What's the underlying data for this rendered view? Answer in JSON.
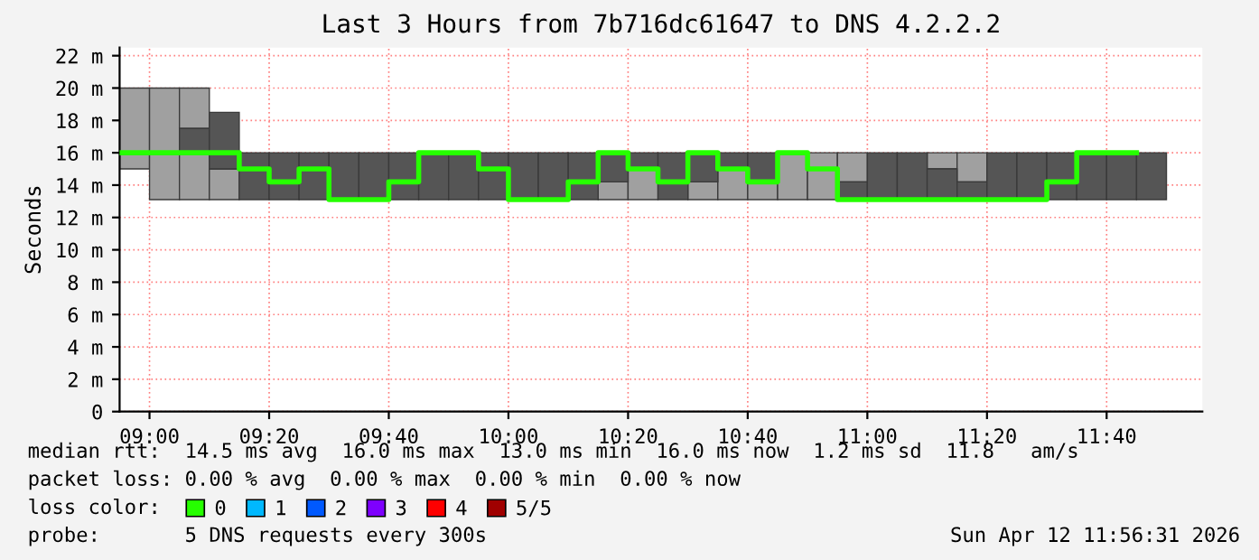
{
  "chart_data": {
    "type": "step",
    "title": "Last 3 Hours from 7b716dc61647 to DNS 4.2.2.2",
    "ylabel": "Seconds",
    "x": [
      "2026-04-12T08:55",
      "2026-04-12T09:00",
      "2026-04-12T09:05",
      "2026-04-12T09:10",
      "2026-04-12T09:15",
      "2026-04-12T09:20",
      "2026-04-12T09:25",
      "2026-04-12T09:30",
      "2026-04-12T09:35",
      "2026-04-12T09:40",
      "2026-04-12T09:45",
      "2026-04-12T09:50",
      "2026-04-12T09:55",
      "2026-04-12T10:00",
      "2026-04-12T10:05",
      "2026-04-12T10:10",
      "2026-04-12T10:15",
      "2026-04-12T10:20",
      "2026-04-12T10:25",
      "2026-04-12T10:30",
      "2026-04-12T10:35",
      "2026-04-12T10:40",
      "2026-04-12T10:45",
      "2026-04-12T10:50",
      "2026-04-12T10:55",
      "2026-04-12T11:00",
      "2026-04-12T11:05",
      "2026-04-12T11:10",
      "2026-04-12T11:15",
      "2026-04-12T11:20",
      "2026-04-12T11:25",
      "2026-04-12T11:30",
      "2026-04-12T11:35",
      "2026-04-12T11:40",
      "2026-04-12T11:45"
    ],
    "series": [
      {
        "type": "bar",
        "color": "#a0a0a0",
        "base": [
          15,
          13.1,
          13.1,
          13.1,
          null,
          null,
          null,
          null,
          null,
          null,
          null,
          null,
          null,
          null,
          null,
          null,
          13.1,
          13.1,
          null,
          13.1,
          13.1,
          13.1,
          13.1,
          13.1,
          14.2,
          null,
          null,
          15,
          14.2,
          null,
          null,
          null,
          null,
          null,
          null
        ],
        "values": [
          5,
          6.9,
          2.9,
          1.9,
          null,
          null,
          null,
          null,
          null,
          null,
          null,
          null,
          null,
          null,
          null,
          null,
          1.1,
          1.9,
          null,
          1.1,
          1.9,
          1.1,
          2.9,
          2.9,
          1.8,
          null,
          null,
          1,
          1.8,
          null,
          null,
          null,
          null,
          null,
          null
        ]
      },
      {
        "type": "bar",
        "color": "#a0a0a0",
        "base": [
          null,
          null,
          17.5,
          null,
          null,
          null,
          null,
          null,
          null,
          null,
          null,
          null,
          null,
          null,
          null,
          null,
          null,
          null,
          null,
          null,
          null,
          null,
          null,
          null,
          null,
          null,
          null,
          null,
          null,
          null,
          null,
          null,
          null,
          null,
          null
        ],
        "values": [
          null,
          null,
          2.5,
          null,
          null,
          null,
          null,
          null,
          null,
          null,
          null,
          null,
          null,
          null,
          null,
          null,
          null,
          null,
          null,
          null,
          null,
          null,
          null,
          null,
          null,
          null,
          null,
          null,
          null,
          null,
          null,
          null,
          null,
          null,
          null
        ]
      },
      {
        "type": "bar",
        "color": "#555555",
        "base": [
          null,
          null,
          16,
          15,
          13.1,
          13.1,
          13.1,
          13.1,
          13.1,
          13.1,
          13.1,
          13.1,
          13.1,
          13.1,
          13.1,
          13.1,
          14.2,
          15,
          13.1,
          14.2,
          15,
          14.2,
          null,
          null,
          13.1,
          13.1,
          13.1,
          13.1,
          13.1,
          13.1,
          13.1,
          13.1,
          13.1,
          13.1,
          13.1
        ],
        "values": [
          null,
          null,
          1.5,
          3.5,
          2.9,
          2.9,
          2.9,
          2.9,
          2.9,
          2.9,
          2.9,
          2.9,
          2.9,
          2.9,
          2.9,
          2.9,
          1.8,
          1,
          2.9,
          1.8,
          1,
          1.8,
          null,
          null,
          1.1,
          2.9,
          2.9,
          1.9,
          1.1,
          2.9,
          2.9,
          2.9,
          2.9,
          2.9,
          2.9
        ]
      },
      {
        "name": "0",
        "color": "#26ff00",
        "values": [
          16,
          16,
          16,
          16,
          15,
          14.2,
          15,
          13.1,
          13.1,
          14.2,
          16,
          16,
          15,
          13.1,
          13.1,
          14.2,
          16,
          15,
          14.2,
          16,
          15,
          14.2,
          16,
          15,
          13.1,
          13.1,
          13.1,
          13.1,
          13.1,
          13.1,
          13.1,
          14.2,
          16,
          16,
          16
        ]
      },
      {
        "name": "1",
        "color": "#00b8ff",
        "values": [
          null,
          null,
          null,
          null,
          null,
          null,
          null,
          null,
          null,
          null,
          null,
          null,
          null,
          null,
          null,
          null,
          null,
          null,
          null,
          null,
          null,
          null,
          null,
          null,
          null,
          null,
          null,
          null,
          null,
          null,
          null,
          null,
          null,
          null,
          null
        ]
      },
      {
        "name": "2",
        "color": "#0059ff",
        "values": [
          null,
          null,
          null,
          null,
          null,
          null,
          null,
          null,
          null,
          null,
          null,
          null,
          null,
          null,
          null,
          null,
          null,
          null,
          null,
          null,
          null,
          null,
          null,
          null,
          null,
          null,
          null,
          null,
          null,
          null,
          null,
          null,
          null,
          null,
          null
        ]
      },
      {
        "name": "3",
        "color": "#7e00ff",
        "values": [
          null,
          null,
          null,
          null,
          null,
          null,
          null,
          null,
          null,
          null,
          null,
          null,
          null,
          null,
          null,
          null,
          null,
          null,
          null,
          null,
          null,
          null,
          null,
          null,
          null,
          null,
          null,
          null,
          null,
          null,
          null,
          null,
          null,
          null,
          null
        ]
      },
      {
        "name": "4",
        "color": "#ff0000",
        "values": [
          null,
          null,
          null,
          null,
          null,
          null,
          null,
          null,
          null,
          null,
          null,
          null,
          null,
          null,
          null,
          null,
          null,
          null,
          null,
          null,
          null,
          null,
          null,
          null,
          null,
          null,
          null,
          null,
          null,
          null,
          null,
          null,
          null,
          null,
          null
        ]
      },
      {
        "name": "5/5",
        "color": "#a00000",
        "values": [
          null,
          null,
          null,
          null,
          null,
          null,
          null,
          null,
          null,
          null,
          null,
          null,
          null,
          null,
          null,
          null,
          null,
          null,
          null,
          null,
          null,
          null,
          null,
          null,
          null,
          null,
          null,
          null,
          null,
          null,
          null,
          null,
          null,
          null,
          null
        ]
      }
    ],
    "legend_title": "loss color:",
    "legend": "bottom",
    "xlim": [
      "2026-04-12T08:55",
      "2026-04-12T11:56"
    ],
    "xticks": [
      {
        "value": "2026-04-12T09:00",
        "label": "09:00"
      },
      {
        "value": "2026-04-12T09:20",
        "label": "09:20"
      },
      {
        "value": "2026-04-12T09:40",
        "label": "09:40"
      },
      {
        "value": "2026-04-12T10:00",
        "label": "10:00"
      },
      {
        "value": "2026-04-12T10:20",
        "label": "10:20"
      },
      {
        "value": "2026-04-12T10:40",
        "label": "10:40"
      },
      {
        "value": "2026-04-12T11:00",
        "label": "11:00"
      },
      {
        "value": "2026-04-12T11:20",
        "label": "11:20"
      },
      {
        "value": "2026-04-12T11:40",
        "label": "11:40"
      }
    ],
    "ylim": [
      0,
      22.5
    ],
    "yticks": [
      {
        "value": 0,
        "label": "0"
      },
      {
        "value": 2,
        "label": "2 m"
      },
      {
        "value": 4,
        "label": "4 m"
      },
      {
        "value": 6,
        "label": "6 m"
      },
      {
        "value": 8,
        "label": "8 m"
      },
      {
        "value": 10,
        "label": "10 m"
      },
      {
        "value": 12,
        "label": "12 m"
      },
      {
        "value": 14,
        "label": "14 m"
      },
      {
        "value": 16,
        "label": "16 m"
      },
      {
        "value": 18,
        "label": "18 m"
      },
      {
        "value": 20,
        "label": "20 m"
      },
      {
        "value": 22,
        "label": "22 m"
      }
    ],
    "grid": true,
    "annotations": [
      "median rtt:  14.5 ms avg  16.0 ms max  13.0 ms min  16.0 ms now  1.2 ms sd  11.8   am/s",
      "packet loss: 0.00 % avg  0.00 % max  0.00 % min  0.00 % now",
      "probe:       5 DNS requests every 300s",
      "Sun Apr 12 11:56:31 2026"
    ]
  }
}
